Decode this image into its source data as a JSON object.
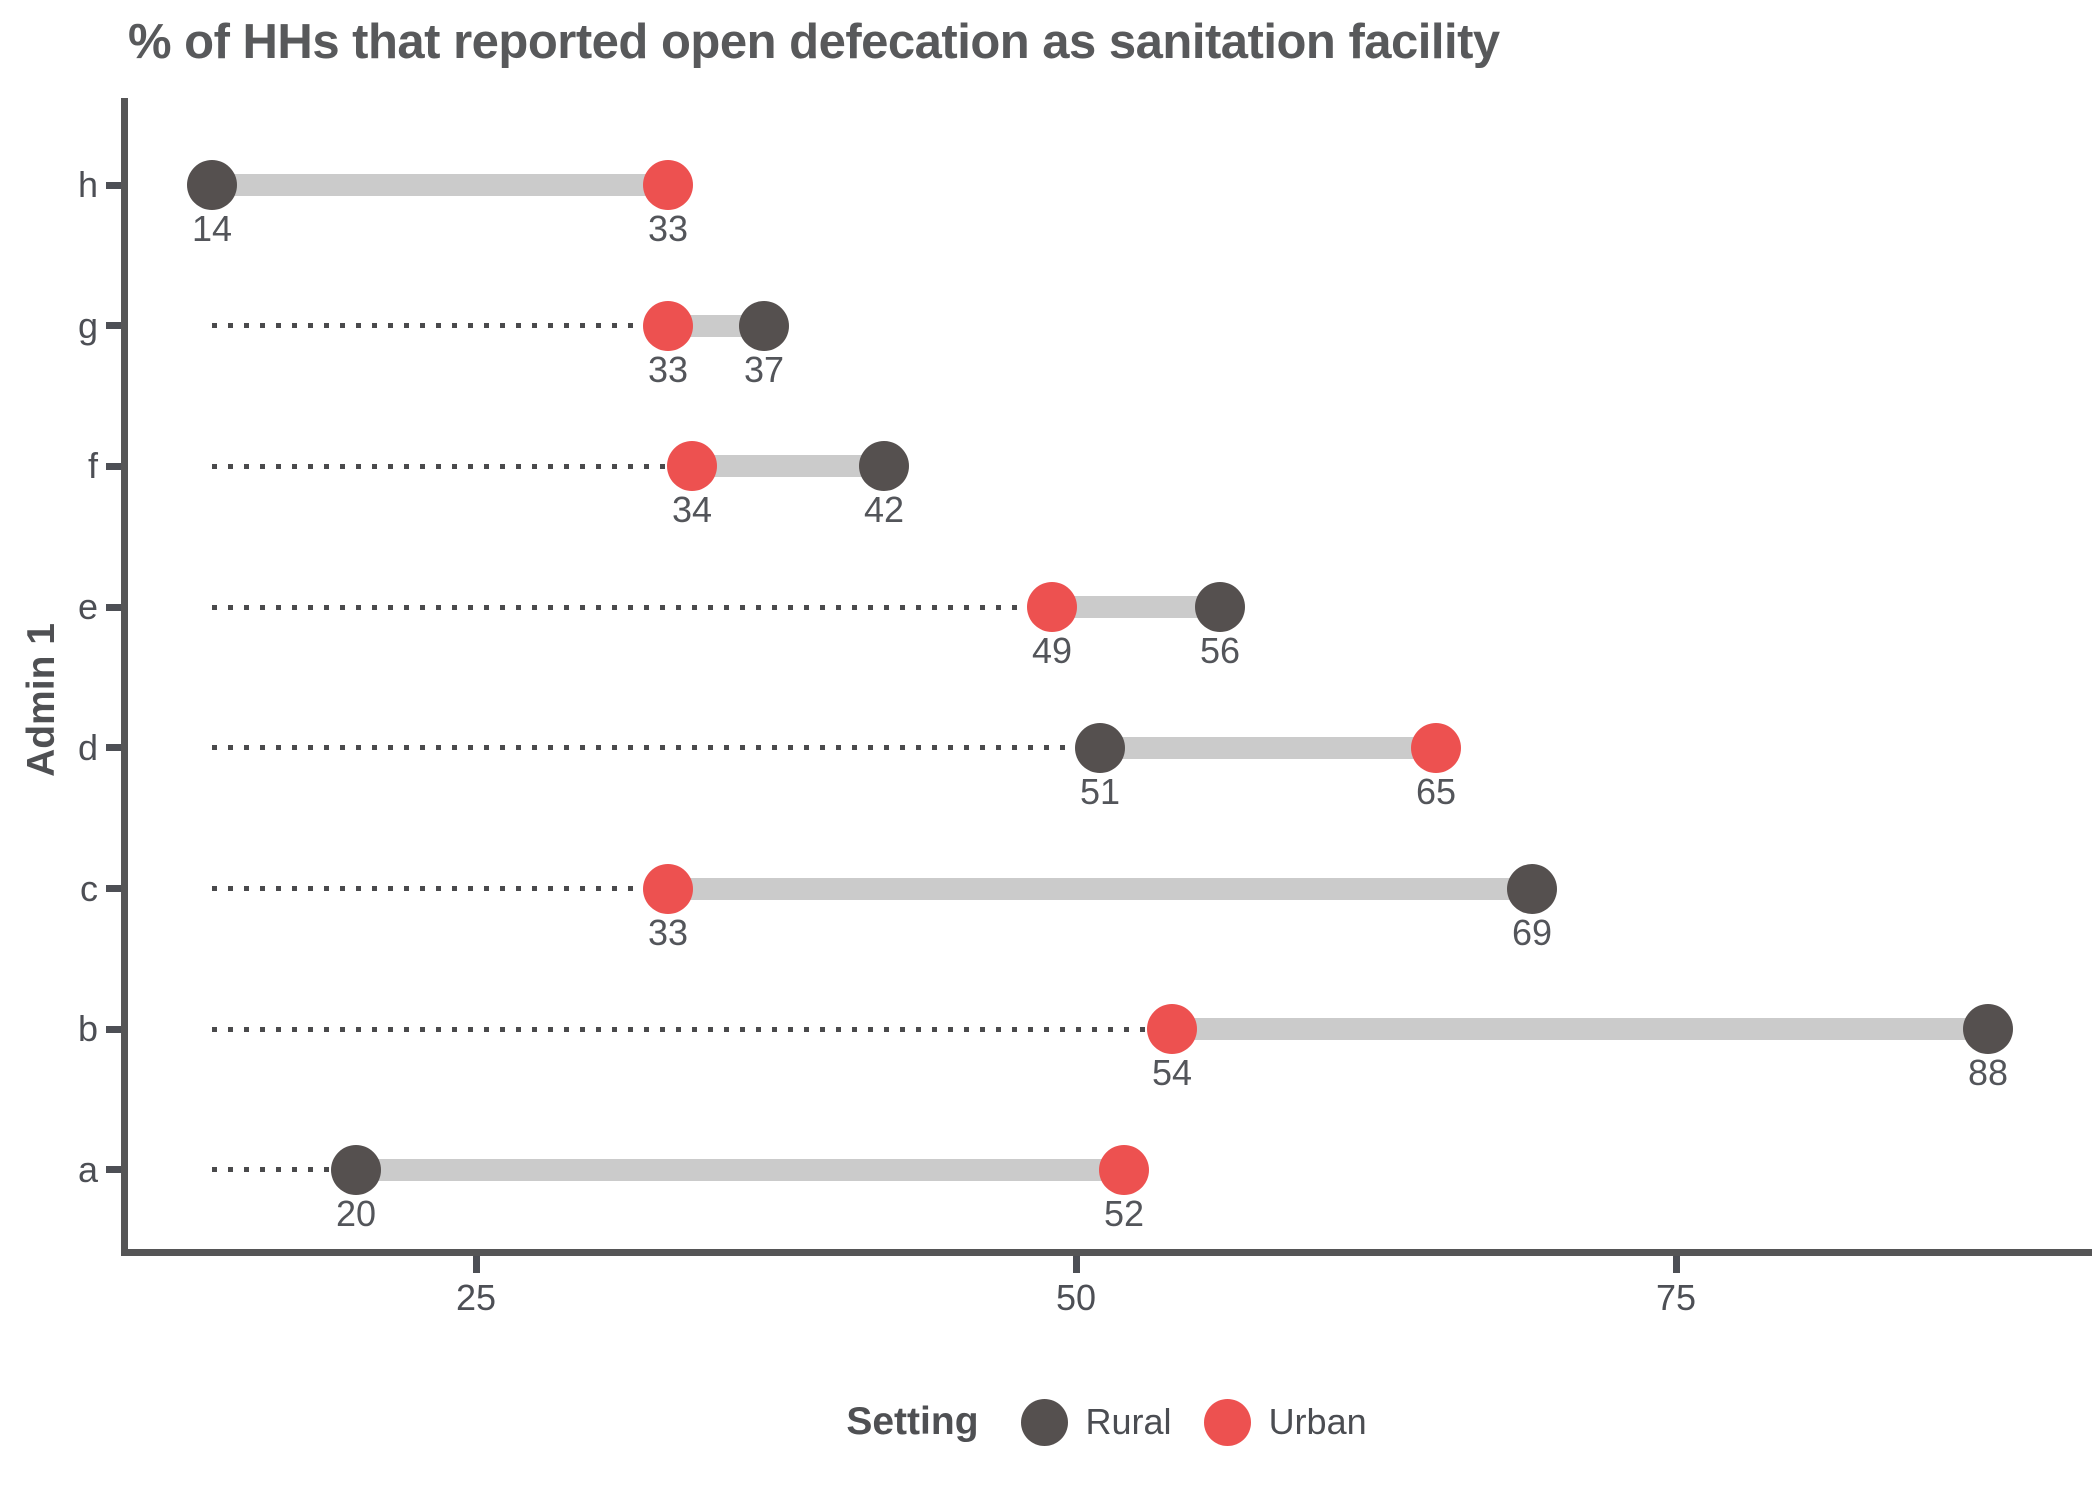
{
  "colors": {
    "rural": "#55504F",
    "urban": "#ED5150",
    "bar": "#CBCBCB",
    "leader": "#4A4A4C",
    "axis": "#555556",
    "text": "#4D4F55",
    "title_text": "#58595B"
  },
  "chart_data": {
    "type": "dumbbell",
    "title": "% of HHs that reported open defecation as sanitation facility",
    "xlabel": "",
    "ylabel": "Admin 1",
    "categories": [
      "h",
      "g",
      "f",
      "e",
      "d",
      "c",
      "b",
      "a"
    ],
    "series": [
      {
        "name": "Rural",
        "values": [
          14,
          37,
          42,
          56,
          51,
          69,
          88,
          20
        ]
      },
      {
        "name": "Urban",
        "values": [
          33,
          33,
          34,
          49,
          65,
          33,
          54,
          52
        ]
      }
    ],
    "x_ticks": [
      25,
      50,
      75
    ],
    "xlim": [
      10,
      92.5
    ],
    "grid": "off",
    "leader_lines": "dotted from overall minimum value (14) to each row's smaller value",
    "legend": {
      "title": "Setting",
      "position": "bottom-center",
      "entries": [
        {
          "label": "Rural",
          "color": "#55504F"
        },
        {
          "label": "Urban",
          "color": "#ED5150"
        }
      ]
    }
  }
}
